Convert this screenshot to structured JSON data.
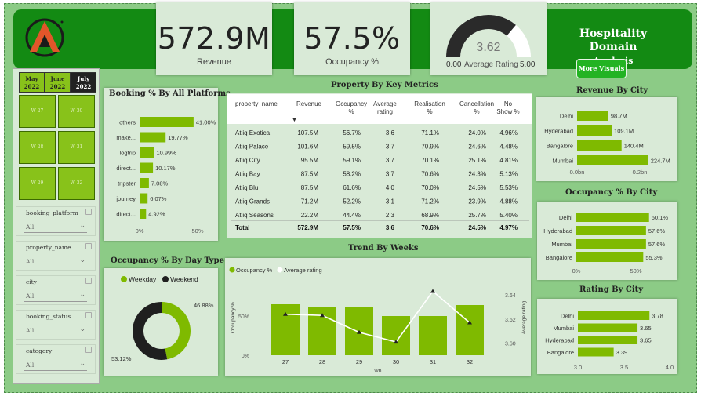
{
  "header": {
    "title": "Hospitality Domain",
    "subtitle": "Analysis",
    "more_visuals": "More Visuals"
  },
  "kpis": {
    "revenue": {
      "value": "572.9M",
      "label": "Revenue"
    },
    "occupancy": {
      "value": "57.5%",
      "label": "Occupancy %"
    },
    "rating": {
      "value": "3.62",
      "min": "0.00",
      "max": "5.00",
      "label": "Average Rating",
      "level": 3.62
    }
  },
  "months": [
    {
      "name": "May",
      "year": "2022",
      "selected": false
    },
    {
      "name": "June",
      "year": "2022",
      "selected": false
    },
    {
      "name": "July",
      "year": "2022",
      "selected": true
    }
  ],
  "weeks": [
    "W 27",
    "W 30",
    "W 28",
    "W 31",
    "W 29",
    "W 32"
  ],
  "slicers": [
    {
      "name": "booking_platform",
      "value": "All"
    },
    {
      "name": "property_name",
      "value": "All"
    },
    {
      "name": "city",
      "value": "All"
    },
    {
      "name": "booking_status",
      "value": "All"
    },
    {
      "name": "category",
      "value": "All"
    }
  ],
  "booking_platforms": {
    "title": "Booking % By All Platforms",
    "axis": [
      "0%",
      "50%"
    ],
    "chart_data": {
      "type": "bar",
      "categories": [
        "others",
        "make...",
        "logtrip",
        "direct...",
        "tripster",
        "journey",
        "direct..."
      ],
      "values": [
        41.0,
        19.77,
        10.99,
        10.17,
        7.08,
        6.07,
        4.92
      ],
      "labels": [
        "41.00%",
        "19.77%",
        "10.99%",
        "10.17%",
        "7.08%",
        "6.07%",
        "4.92%"
      ],
      "xlim": [
        0,
        50
      ]
    }
  },
  "metrics_table": {
    "title": "Property By Key Metrics",
    "columns": [
      "property_name",
      "Revenue",
      "Occupancy %",
      "Average rating",
      "Realisation %",
      "Cancellation %",
      "No Show %"
    ],
    "rows": [
      [
        "Atliq Exotica",
        "107.5M",
        "56.7%",
        "3.6",
        "71.1%",
        "24.0%",
        "4.96%"
      ],
      [
        "Atliq Palace",
        "101.6M",
        "59.5%",
        "3.7",
        "70.9%",
        "24.6%",
        "4.48%"
      ],
      [
        "Atliq City",
        "95.5M",
        "59.1%",
        "3.7",
        "70.1%",
        "25.1%",
        "4.81%"
      ],
      [
        "Atliq Bay",
        "87.5M",
        "58.2%",
        "3.7",
        "70.6%",
        "24.3%",
        "5.13%"
      ],
      [
        "Atliq Blu",
        "87.5M",
        "61.6%",
        "4.0",
        "70.0%",
        "24.5%",
        "5.53%"
      ],
      [
        "Atliq Grands",
        "71.2M",
        "52.2%",
        "3.1",
        "71.2%",
        "23.9%",
        "4.88%"
      ],
      [
        "Atliq Seasons",
        "22.2M",
        "44.4%",
        "2.3",
        "68.9%",
        "25.7%",
        "5.40%"
      ]
    ],
    "total": [
      "Total",
      "572.9M",
      "57.5%",
      "3.6",
      "70.6%",
      "24.5%",
      "4.97%"
    ]
  },
  "occupancy_day_type": {
    "title": "Occupancy % By Day Type",
    "legend": [
      "Weekday",
      "Weekend"
    ],
    "colors": [
      "#7fba00",
      "#1f1f1f"
    ],
    "chart_data": {
      "type": "pie",
      "categories": [
        "Weekday",
        "Weekend"
      ],
      "values": [
        46.88,
        53.12
      ],
      "labels": [
        "46.88%",
        "53.12%"
      ]
    }
  },
  "trend": {
    "title": "Trend By Weeks",
    "legend": [
      "Occupancy %",
      "Average rating"
    ],
    "ylabel_left": "Occupancy %",
    "ylabel_right": "Average rating",
    "xlabel": "wn",
    "left_ticks": [
      "0%",
      "50%"
    ],
    "right_ticks": [
      "3.60",
      "3.62",
      "3.64"
    ],
    "chart_data": {
      "type": "bar",
      "categories": [
        "27",
        "28",
        "29",
        "30",
        "31",
        "32"
      ],
      "series": [
        {
          "name": "Occupancy %",
          "type": "bar",
          "values": [
            65,
            61,
            62,
            50,
            50,
            64
          ]
        },
        {
          "name": "Average rating",
          "type": "line",
          "values": [
            3.624,
            3.623,
            3.609,
            3.601,
            3.643,
            3.617
          ]
        }
      ],
      "ylim_left": [
        0,
        100
      ],
      "ylim_right": [
        3.59,
        3.655
      ]
    }
  },
  "revenue_city": {
    "title": "Revenue By City",
    "axis": [
      "0.0bn",
      "0.2bn"
    ],
    "chart_data": {
      "type": "bar",
      "categories": [
        "Delhi",
        "Hyderabad",
        "Bangalore",
        "Mumbai"
      ],
      "values": [
        98.7,
        109.1,
        140.4,
        224.7
      ],
      "labels": [
        "98.7M",
        "109.1M",
        "140.4M",
        "224.7M"
      ],
      "xlim": [
        0,
        260
      ]
    }
  },
  "occupancy_city": {
    "title": "Occupancy % By City",
    "axis": [
      "0%",
      "50%"
    ],
    "chart_data": {
      "type": "bar",
      "categories": [
        "Delhi",
        "Hyderabad",
        "Mumbai",
        "Bangalore"
      ],
      "values": [
        60.1,
        57.6,
        57.6,
        55.3
      ],
      "labels": [
        "60.1%",
        "57.6%",
        "57.6%",
        "55.3%"
      ],
      "xlim": [
        0,
        70
      ]
    }
  },
  "rating_city": {
    "title": "Rating By City",
    "axis": [
      "3.0",
      "3.5",
      "4.0"
    ],
    "chart_data": {
      "type": "bar",
      "categories": [
        "Delhi",
        "Mumbai",
        "Hyderabad",
        "Bangalore"
      ],
      "values": [
        3.78,
        3.65,
        3.65,
        3.39
      ],
      "labels": [
        "3.78",
        "3.65",
        "3.65",
        "3.39"
      ],
      "xlim": [
        3.0,
        4.0
      ]
    }
  }
}
